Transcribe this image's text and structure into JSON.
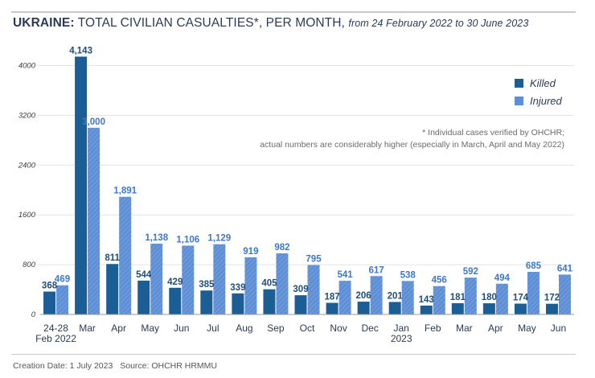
{
  "header": {
    "title_strong": "UKRAINE:",
    "title_main": "TOTAL CIVILIAN CASUALTIES*, PER MONTH,",
    "title_sub": "from 24 February 2022 to 30 June 2023"
  },
  "footer": {
    "creation": "Creation Date: 1 July 2023",
    "source": "Source: OHCHR HRMMU"
  },
  "colors": {
    "killed": "#1b5e96",
    "injured": "#5e8fd6",
    "killed_label": "#1f4e79",
    "injured_label": "#3d78c8",
    "grid": "#e2e2e2"
  },
  "chart_data": {
    "type": "bar",
    "title": "UKRAINE: TOTAL CIVILIAN CASUALTIES*, PER MONTH, from 24 February 2022 to 30 June 2023",
    "note_line1": "* Individual cases verified by OHCHR;",
    "note_line2": "actual numbers are considerably higher (especially in March, April and May 2022)",
    "legend_position": "top-right",
    "grid": true,
    "ylim": [
      0,
      4200
    ],
    "yticks": [
      0,
      800,
      1600,
      2400,
      3200,
      4000
    ],
    "ytick_labels": [
      "0",
      "800",
      "1600",
      "2400",
      "3200",
      "4000"
    ],
    "categories": [
      [
        "24-28",
        "Feb 2022"
      ],
      [
        "Mar"
      ],
      [
        "Apr"
      ],
      [
        "May"
      ],
      [
        "Jun"
      ],
      [
        "Jul"
      ],
      [
        "Aug"
      ],
      [
        "Sep"
      ],
      [
        "Oct"
      ],
      [
        "Nov"
      ],
      [
        "Dec"
      ],
      [
        "Jan",
        "2023"
      ],
      [
        "Feb"
      ],
      [
        "Mar"
      ],
      [
        "Apr"
      ],
      [
        "May"
      ],
      [
        "Jun"
      ]
    ],
    "series": [
      {
        "name": "Killed",
        "values": [
          368,
          4143,
          811,
          544,
          429,
          385,
          339,
          405,
          309,
          187,
          206,
          201,
          143,
          181,
          180,
          174,
          172
        ],
        "labels": [
          "368",
          "4,143",
          "811",
          "544",
          "429",
          "385",
          "339",
          "405",
          "309",
          "187",
          "206",
          "201",
          "143",
          "181",
          "180",
          "174",
          "172"
        ]
      },
      {
        "name": "Injured",
        "values": [
          469,
          3000,
          1891,
          1138,
          1106,
          1129,
          919,
          982,
          795,
          541,
          617,
          538,
          456,
          592,
          494,
          685,
          641
        ],
        "labels": [
          "469",
          "3,000",
          "1,891",
          "1,138",
          "1,106",
          "1,129",
          "919",
          "982",
          "795",
          "541",
          "617",
          "538",
          "456",
          "592",
          "494",
          "685",
          "641"
        ]
      }
    ]
  }
}
